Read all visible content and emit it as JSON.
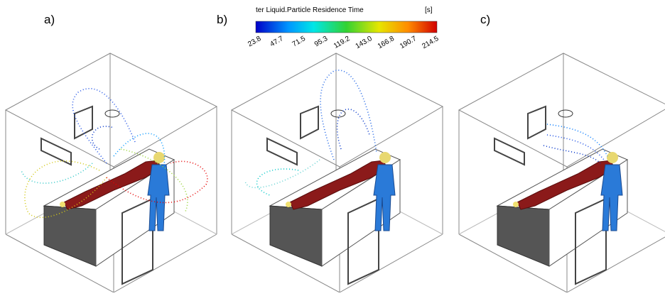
{
  "panel_labels": [
    "a)",
    "b)",
    "c)"
  ],
  "colorbar": {
    "title": "ter Liquid.Particle Residence Time",
    "unit": "[s]",
    "ticks": [
      "23.8",
      "47.7",
      "71.5",
      "95.3",
      "119.2",
      "143.0",
      "166.8",
      "190.7",
      "214.5"
    ]
  }
}
